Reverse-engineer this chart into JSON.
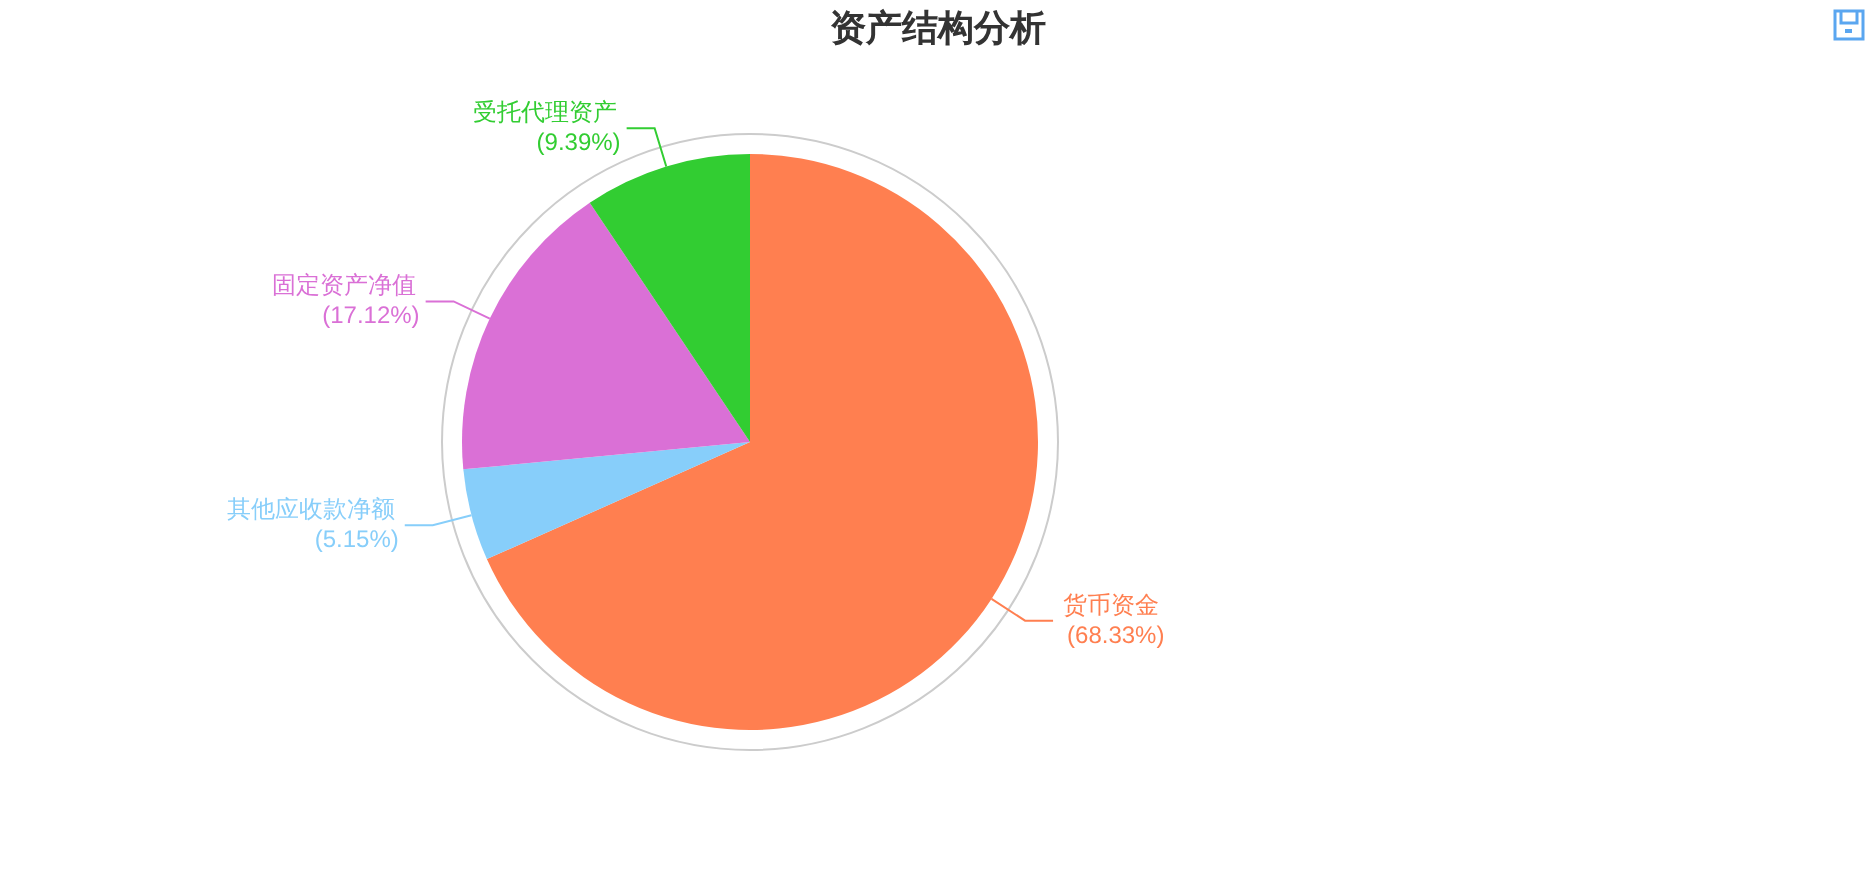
{
  "chart_data": {
    "type": "pie",
    "title": "资产结构分析",
    "categories": [
      "货币资金",
      "其他应收款净额",
      "固定资产净值",
      "受托代理资产"
    ],
    "values": [
      68.33,
      5.15,
      17.12,
      9.39
    ],
    "colors": [
      "#ff7f50",
      "#87cefa",
      "#da70d6",
      "#32cd32"
    ],
    "value_labels": [
      "(68.33%)",
      "(5.15%)",
      "(17.12%)",
      "(9.39%)"
    ]
  }
}
